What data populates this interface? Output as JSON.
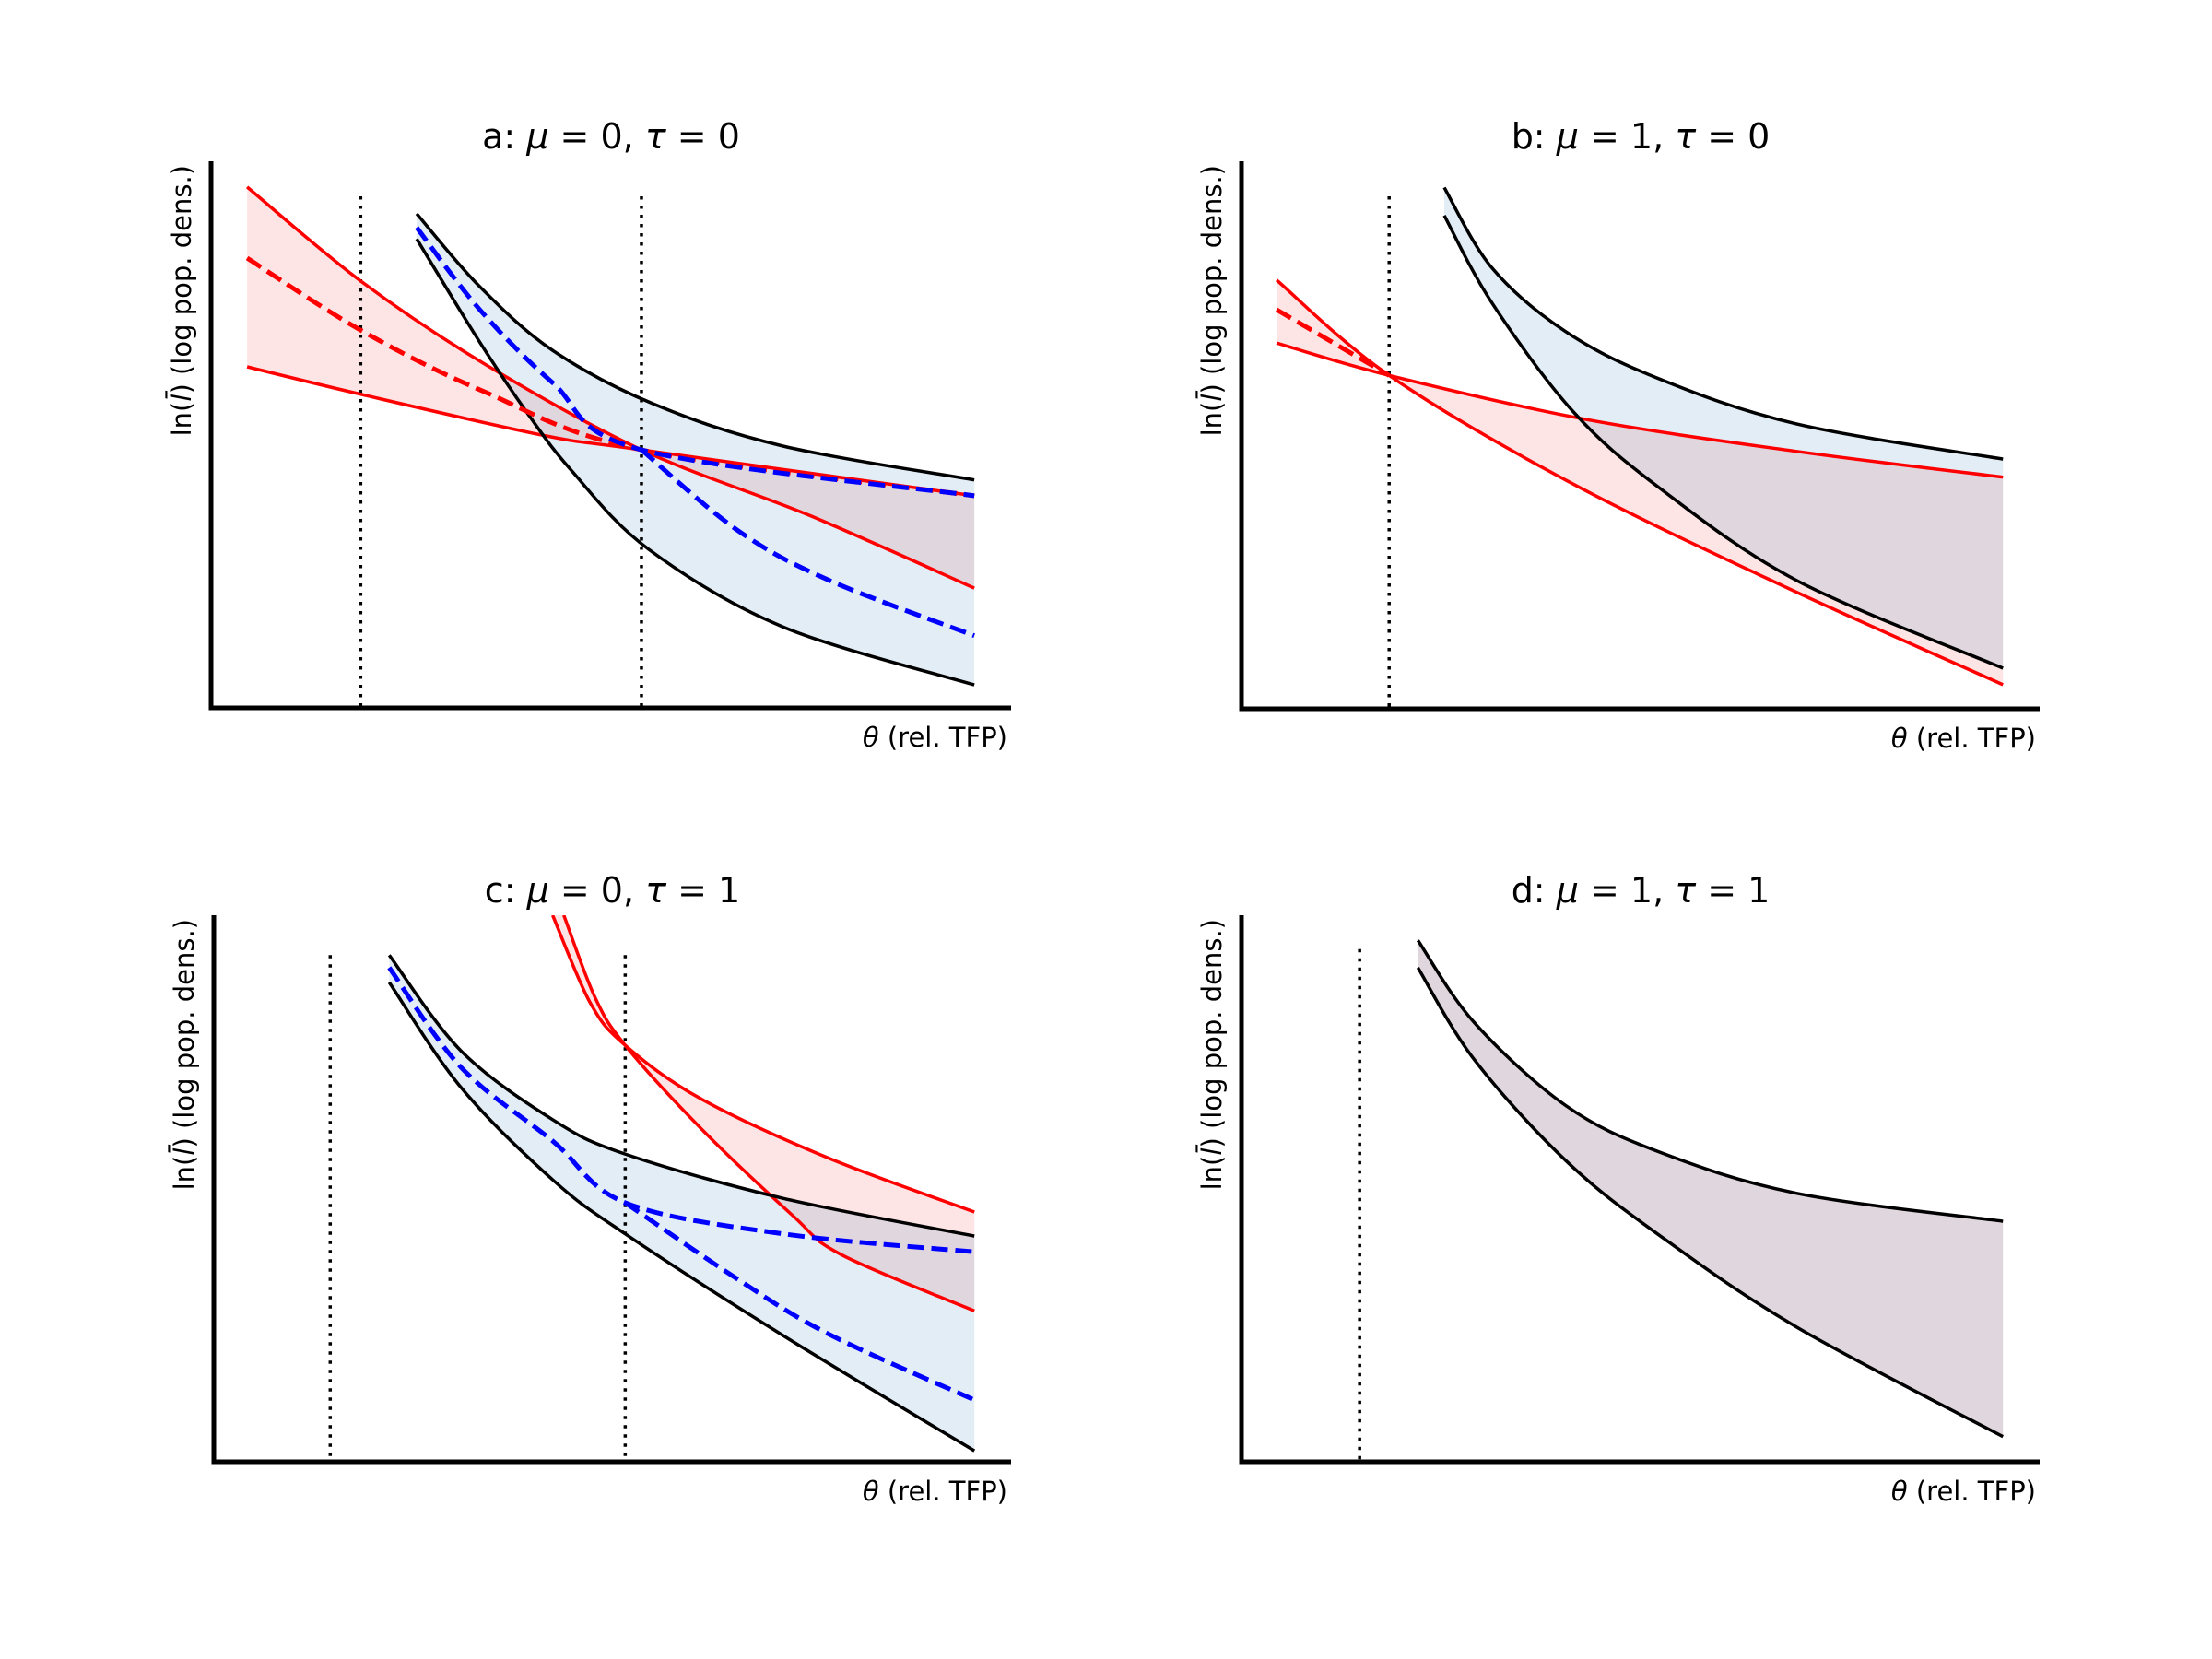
{
  "figure": {
    "colors": {
      "red": "#ff0000",
      "blue": "#0000ff",
      "black": "#000000",
      "red_fill": "rgba(235,40,40,0.12)",
      "blue_fill": "rgba(31,119,180,0.13)"
    }
  },
  "chart_data": [
    {
      "type": "line",
      "panel": "a",
      "title": "a: μ = 0, τ = 0",
      "title_parts": {
        "prefix": "a: ",
        "mu_sym": "μ",
        "mu_eq": " = 0, ",
        "tau_sym": "τ",
        "tau_eq": " = 0"
      },
      "xlabel_sym": "θ",
      "xlabel": " (rel. TFP)",
      "ylabel_prefix": "ln(",
      "ylabel_sym": "l̄",
      "ylabel_suffix": ") (log pop. dens.)",
      "xlim": [
        0,
        10
      ],
      "ylim": [
        0,
        10
      ],
      "grid": false,
      "ticks": false,
      "vlines": [
        {
          "x": 1.87,
          "ymax": 9.36
        },
        {
          "x": 5.38,
          "ymax": 9.36
        }
      ],
      "series": [
        {
          "name": "red-upper",
          "color": "red",
          "style": "solid",
          "points": [
            [
              0.45,
              9.53
            ],
            [
              1.87,
              7.81
            ],
            [
              3.42,
              6.29
            ],
            [
              5.38,
              4.72
            ],
            [
              7.5,
              3.51
            ],
            [
              9.54,
              2.19
            ]
          ]
        },
        {
          "name": "red-lower",
          "color": "red",
          "style": "solid",
          "points": [
            [
              0.45,
              6.24
            ],
            [
              1.92,
              5.72
            ],
            [
              4.14,
              4.99
            ],
            [
              5.38,
              4.72
            ],
            [
              9.54,
              3.88
            ]
          ]
        },
        {
          "name": "red-dashed",
          "color": "red",
          "style": "dashed",
          "points": [
            [
              0.45,
              8.23
            ],
            [
              1.87,
              6.91
            ],
            [
              3.42,
              5.78
            ],
            [
              5.38,
              4.72
            ],
            [
              9.54,
              3.88
            ]
          ]
        },
        {
          "name": "black-upper",
          "color": "black",
          "style": "solid",
          "points": [
            [
              2.57,
              9.04
            ],
            [
              3.35,
              7.72
            ],
            [
              4.27,
              6.54
            ],
            [
              5.53,
              5.56
            ],
            [
              7.15,
              4.79
            ],
            [
              9.54,
              4.17
            ]
          ]
        },
        {
          "name": "black-lower",
          "color": "black",
          "style": "solid",
          "points": [
            [
              2.57,
              8.58
            ],
            [
              3.35,
              6.71
            ],
            [
              3.96,
              5.38
            ],
            [
              4.5,
              4.35
            ],
            [
              5.47,
              2.9
            ],
            [
              7.15,
              1.48
            ],
            [
              9.54,
              0.42
            ]
          ]
        },
        {
          "name": "blue-dashed-1",
          "color": "blue",
          "style": "dashed",
          "points": [
            [
              2.57,
              8.79
            ],
            [
              3.35,
              7.3
            ],
            [
              4.27,
              5.95
            ],
            [
              5.38,
              4.72
            ],
            [
              9.54,
              3.88
            ]
          ]
        },
        {
          "name": "blue-dashed-2",
          "color": "blue",
          "style": "dashed",
          "points": [
            [
              5.38,
              4.72
            ],
            [
              6.58,
              3.25
            ],
            [
              7.73,
              2.33
            ],
            [
              9.54,
              1.32
            ]
          ]
        }
      ],
      "fills": [
        {
          "between": [
            "red-upper",
            "red-lower"
          ],
          "color": "red_fill"
        },
        {
          "between": [
            "black-upper",
            "black-lower"
          ],
          "color": "blue_fill"
        }
      ]
    },
    {
      "type": "line",
      "panel": "b",
      "title": "b: μ = 1, τ = 0",
      "title_parts": {
        "prefix": "b: ",
        "mu_sym": "μ",
        "mu_eq": " = 1, ",
        "tau_sym": "τ",
        "tau_eq": " = 0"
      },
      "xlabel_sym": "θ",
      "xlabel": " (rel. TFP)",
      "ylabel_prefix": "ln(",
      "ylabel_sym": "l̄",
      "ylabel_suffix": ") (log pop. dens.)",
      "xlim": [
        0,
        10
      ],
      "ylim": [
        0,
        10
      ],
      "grid": false,
      "ticks": false,
      "vlines": [
        {
          "x": 1.85,
          "ymax": 9.36
        }
      ],
      "series": [
        {
          "name": "red-steep",
          "color": "red",
          "style": "solid",
          "points": [
            [
              0.44,
              7.83
            ],
            [
              1.85,
              6.09
            ],
            [
              4.11,
              4.14
            ],
            [
              6.79,
              2.24
            ],
            [
              9.54,
              0.44
            ]
          ]
        },
        {
          "name": "red-shallow",
          "color": "red",
          "style": "solid",
          "points": [
            [
              0.44,
              6.68
            ],
            [
              1.85,
              6.09
            ],
            [
              4.3,
              5.29
            ],
            [
              6.96,
              4.7
            ],
            [
              9.54,
              4.23
            ]
          ]
        },
        {
          "name": "red-dashed",
          "color": "red",
          "style": "dashed",
          "points": [
            [
              0.44,
              7.29
            ],
            [
              1.85,
              6.09
            ]
          ]
        },
        {
          "name": "black-upper",
          "color": "black",
          "style": "solid",
          "points": [
            [
              2.54,
              9.52
            ],
            [
              3.14,
              8.05
            ],
            [
              4.06,
              6.89
            ],
            [
              5.21,
              6.04
            ],
            [
              6.96,
              5.2
            ],
            [
              9.54,
              4.56
            ]
          ]
        },
        {
          "name": "black-lower",
          "color": "black",
          "style": "solid",
          "points": [
            [
              2.54,
              9.01
            ],
            [
              3.14,
              7.41
            ],
            [
              4.16,
              5.42
            ],
            [
              5.24,
              4.03
            ],
            [
              6.96,
              2.34
            ],
            [
              9.54,
              0.74
            ]
          ]
        }
      ],
      "fills": [
        {
          "between": [
            "red-steep",
            "red-shallow"
          ],
          "color": "red_fill"
        },
        {
          "between": [
            "black-upper",
            "black-lower"
          ],
          "color": "blue_fill"
        }
      ]
    },
    {
      "type": "line",
      "panel": "c",
      "title": "c: μ = 0, τ = 1",
      "title_parts": {
        "prefix": "c: ",
        "mu_sym": "μ",
        "mu_eq": " = 0, ",
        "tau_sym": "τ",
        "tau_eq": " = 1"
      },
      "xlabel_sym": "θ",
      "xlabel": " (rel. TFP)",
      "ylabel_prefix": "ln(",
      "ylabel_sym": "l̄",
      "ylabel_suffix": ") (log pop. dens.)",
      "xlim": [
        0,
        10
      ],
      "ylim": [
        0,
        10
      ],
      "grid": false,
      "ticks": false,
      "vlines": [
        {
          "x": 1.46,
          "ymax": 9.27
        },
        {
          "x": 5.16,
          "ymax": 9.27
        }
      ],
      "series": [
        {
          "name": "red-upper",
          "color": "red",
          "style": "solid",
          "points": [
            [
              4.25,
              10.0
            ],
            [
              4.72,
              8.4
            ],
            [
              5.16,
              7.62
            ],
            [
              6.11,
              6.64
            ],
            [
              7.72,
              5.55
            ],
            [
              9.54,
              4.57
            ]
          ]
        },
        {
          "name": "red-lower",
          "color": "red",
          "style": "solid",
          "points": [
            [
              4.39,
              10.0
            ],
            [
              4.78,
              8.5
            ],
            [
              5.16,
              7.62
            ],
            [
              6.11,
              6.1
            ],
            [
              7.25,
              4.52
            ],
            [
              7.87,
              3.79
            ],
            [
              9.54,
              2.76
            ]
          ]
        },
        {
          "name": "black-upper",
          "color": "black",
          "style": "solid",
          "points": [
            [
              2.2,
              9.27
            ],
            [
              3.1,
              7.52
            ],
            [
              4.25,
              6.26
            ],
            [
              5.16,
              5.63
            ],
            [
              7.14,
              4.82
            ],
            [
              9.54,
              4.13
            ]
          ]
        },
        {
          "name": "black-lower",
          "color": "black",
          "style": "solid",
          "points": [
            [
              2.2,
              8.77
            ],
            [
              3.1,
              6.85
            ],
            [
              4.25,
              5.16
            ],
            [
              5.16,
              4.17
            ],
            [
              7.14,
              2.31
            ],
            [
              9.54,
              0.2
            ]
          ]
        },
        {
          "name": "blue-dashed-1",
          "color": "blue",
          "style": "dashed",
          "points": [
            [
              2.2,
              9.04
            ],
            [
              3.1,
              7.22
            ],
            [
              4.25,
              5.87
            ],
            [
              5.16,
              4.74
            ],
            [
              7.14,
              4.17
            ],
            [
              9.54,
              3.84
            ]
          ]
        },
        {
          "name": "blue-dashed-2",
          "color": "blue",
          "style": "dashed",
          "points": [
            [
              5.16,
              4.74
            ],
            [
              6.57,
              3.34
            ],
            [
              7.72,
              2.33
            ],
            [
              9.54,
              1.13
            ]
          ]
        }
      ],
      "fills": [
        {
          "between": [
            "red-upper",
            "red-lower"
          ],
          "color": "red_fill"
        },
        {
          "between": [
            "black-upper",
            "black-lower"
          ],
          "color": "blue_fill"
        }
      ]
    },
    {
      "type": "line",
      "panel": "d",
      "title": "d: μ = 1, τ = 1",
      "title_parts": {
        "prefix": "d: ",
        "mu_sym": "μ",
        "mu_eq": " = 1, ",
        "tau_sym": "τ",
        "tau_eq": " = 1"
      },
      "xlabel_sym": "θ",
      "xlabel": " (rel. TFP)",
      "ylabel_prefix": "ln(",
      "ylabel_sym": "l̄",
      "ylabel_suffix": ") (log pop. dens.)",
      "xlim": [
        0,
        10
      ],
      "ylim": [
        0,
        10
      ],
      "grid": false,
      "ticks": false,
      "vlines": [
        {
          "x": 1.48,
          "ymax": 9.38
        }
      ],
      "series": [
        {
          "name": "black-upper",
          "color": "black",
          "style": "solid",
          "points": [
            [
              2.21,
              9.54
            ],
            [
              2.92,
              8.03
            ],
            [
              4.07,
              6.51
            ],
            [
              5.23,
              5.67
            ],
            [
              6.96,
              4.91
            ],
            [
              9.54,
              4.4
            ]
          ]
        },
        {
          "name": "black-lower",
          "color": "black",
          "style": "solid",
          "points": [
            [
              2.21,
              9.04
            ],
            [
              2.92,
              7.35
            ],
            [
              4.07,
              5.5
            ],
            [
              5.23,
              4.15
            ],
            [
              6.96,
              2.46
            ],
            [
              9.54,
              0.46
            ]
          ]
        }
      ],
      "fills": [
        {
          "between": [
            "black-upper",
            "black-lower"
          ],
          "color": "red_fill"
        },
        {
          "between": [
            "black-upper",
            "black-lower"
          ],
          "color": "blue_fill"
        }
      ]
    }
  ]
}
